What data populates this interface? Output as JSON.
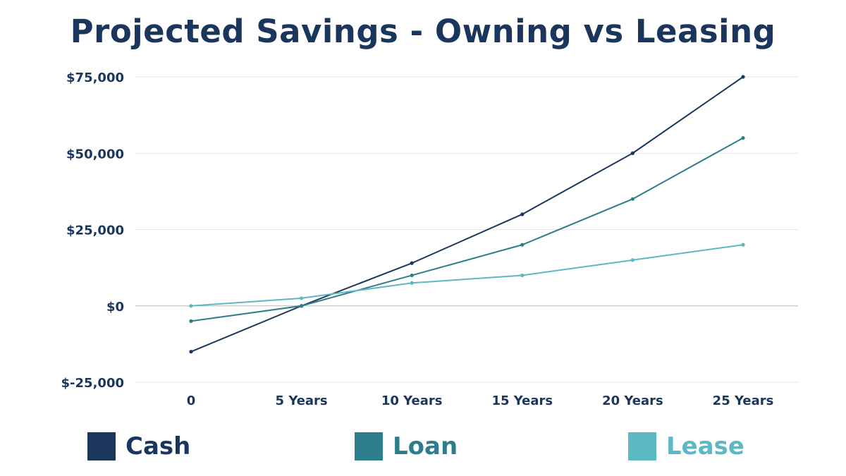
{
  "colors": {
    "title": "#1b365d",
    "axis_text": "#1b365d",
    "grid": "#e6e6e6",
    "zero_line": "#b8b8b8"
  },
  "chart_data": {
    "type": "line",
    "title": "Projected Savings - Owning vs Leasing",
    "xlabel": "",
    "ylabel": "",
    "categories": [
      "0",
      "5 Years",
      "10 Years",
      "15 Years",
      "20 Years",
      "25 Years"
    ],
    "ylim": [
      -25000,
      75000
    ],
    "yticks": [
      {
        "value": 75000,
        "label": "$75,000"
      },
      {
        "value": 50000,
        "label": "$50,000"
      },
      {
        "value": 25000,
        "label": "$25,000"
      },
      {
        "value": 0,
        "label": "$0"
      },
      {
        "value": -25000,
        "label": "$-25,000"
      }
    ],
    "grid": true,
    "legend_position": "bottom",
    "series": [
      {
        "name": "Cash",
        "color": "#1b365d",
        "values": [
          -15000,
          0,
          14000,
          30000,
          50000,
          75000
        ]
      },
      {
        "name": "Loan",
        "color": "#2e7d8c",
        "values": [
          -5000,
          0,
          10000,
          20000,
          35000,
          55000
        ]
      },
      {
        "name": "Lease",
        "color": "#5bb8c4",
        "values": [
          0,
          2500,
          7500,
          10000,
          15000,
          20000
        ]
      }
    ]
  }
}
